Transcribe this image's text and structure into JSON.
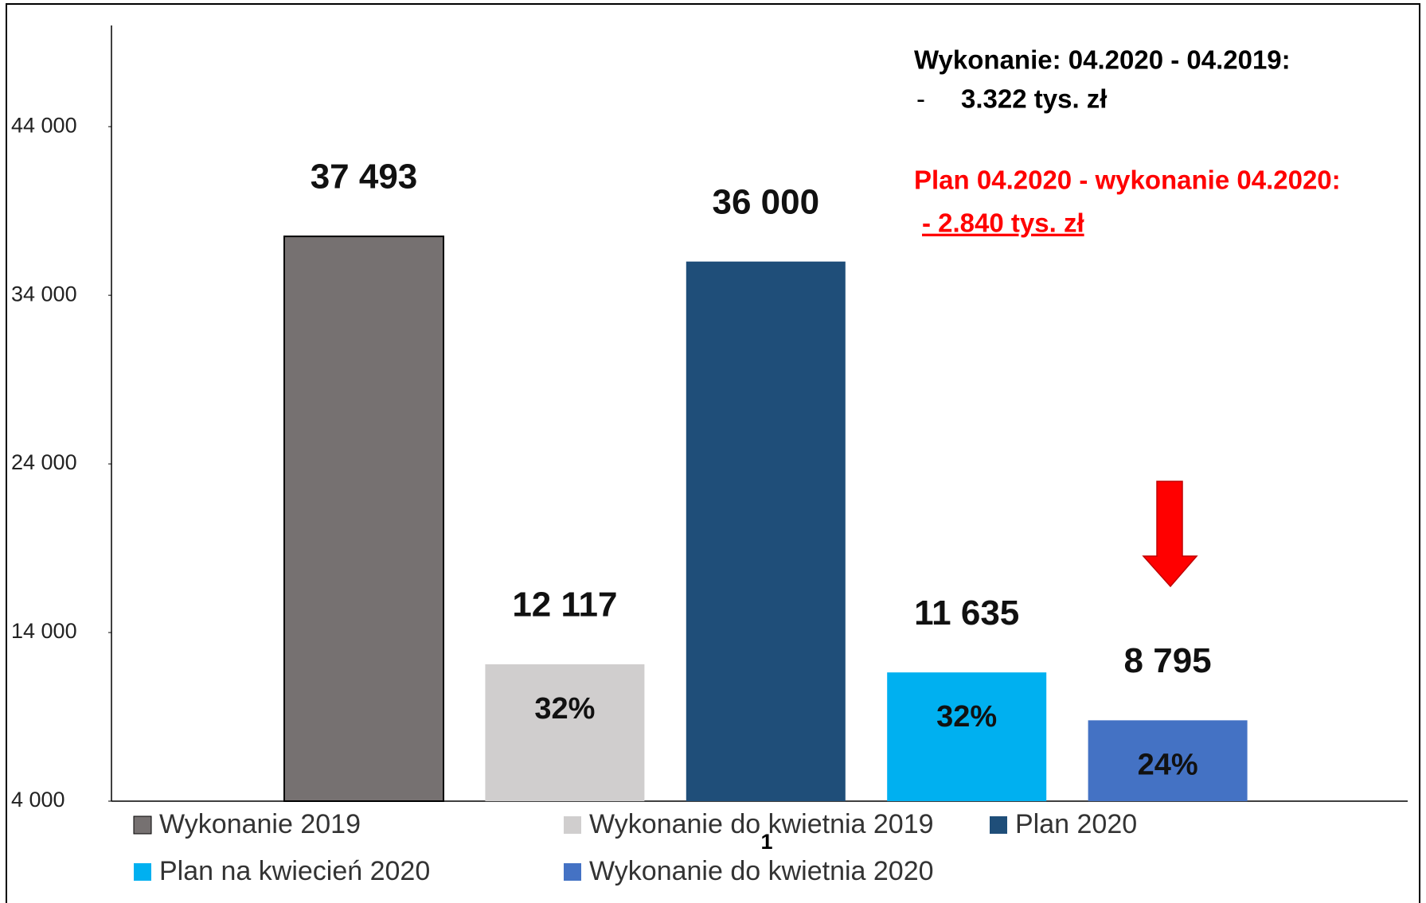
{
  "chart_data": {
    "type": "bar",
    "categories": [
      null
    ],
    "series": [
      {
        "name": "Wykonanie 2019",
        "color": "#767171",
        "values": [
          37493
        ],
        "value_labels": [
          "37 493"
        ]
      },
      {
        "name": "Wykonanie do kwietnia 2019",
        "color": "#d0cece",
        "values": [
          12117
        ],
        "value_labels": [
          "12 117"
        ],
        "share_label": "32%"
      },
      {
        "name": "Plan 2020",
        "color": "#1f4e79",
        "values": [
          36000
        ],
        "value_labels": [
          "36 000"
        ]
      },
      {
        "name": "Plan na kwiecień 2020",
        "color": "#00b0f0",
        "values": [
          11635
        ],
        "value_labels": [
          "11 635"
        ],
        "share_label": "32%"
      },
      {
        "name": "Wykonanie do kwietnia 2020",
        "color": "#4472c4",
        "values": [
          8795
        ],
        "value_labels": [
          "8 795"
        ],
        "share_label": "24%"
      }
    ],
    "ylim": [
      4000,
      50000
    ],
    "yticks": [
      {
        "value": 4000,
        "label": "4 000"
      },
      {
        "value": 14000,
        "label": "14 000"
      },
      {
        "value": 24000,
        "label": "24 000"
      },
      {
        "value": 34000,
        "label": "34 000"
      },
      {
        "value": 44000,
        "label": "44 000"
      }
    ],
    "annotations": {
      "line1": "Wykonanie: 04.2020 - 04.2019:",
      "dash": "-",
      "line2": "3.322 tys. zł",
      "line3": "Plan 04.2020 - wykonanie 04.2020:",
      "line4": "- 2.840 tys. zł"
    },
    "page_number": "1"
  }
}
